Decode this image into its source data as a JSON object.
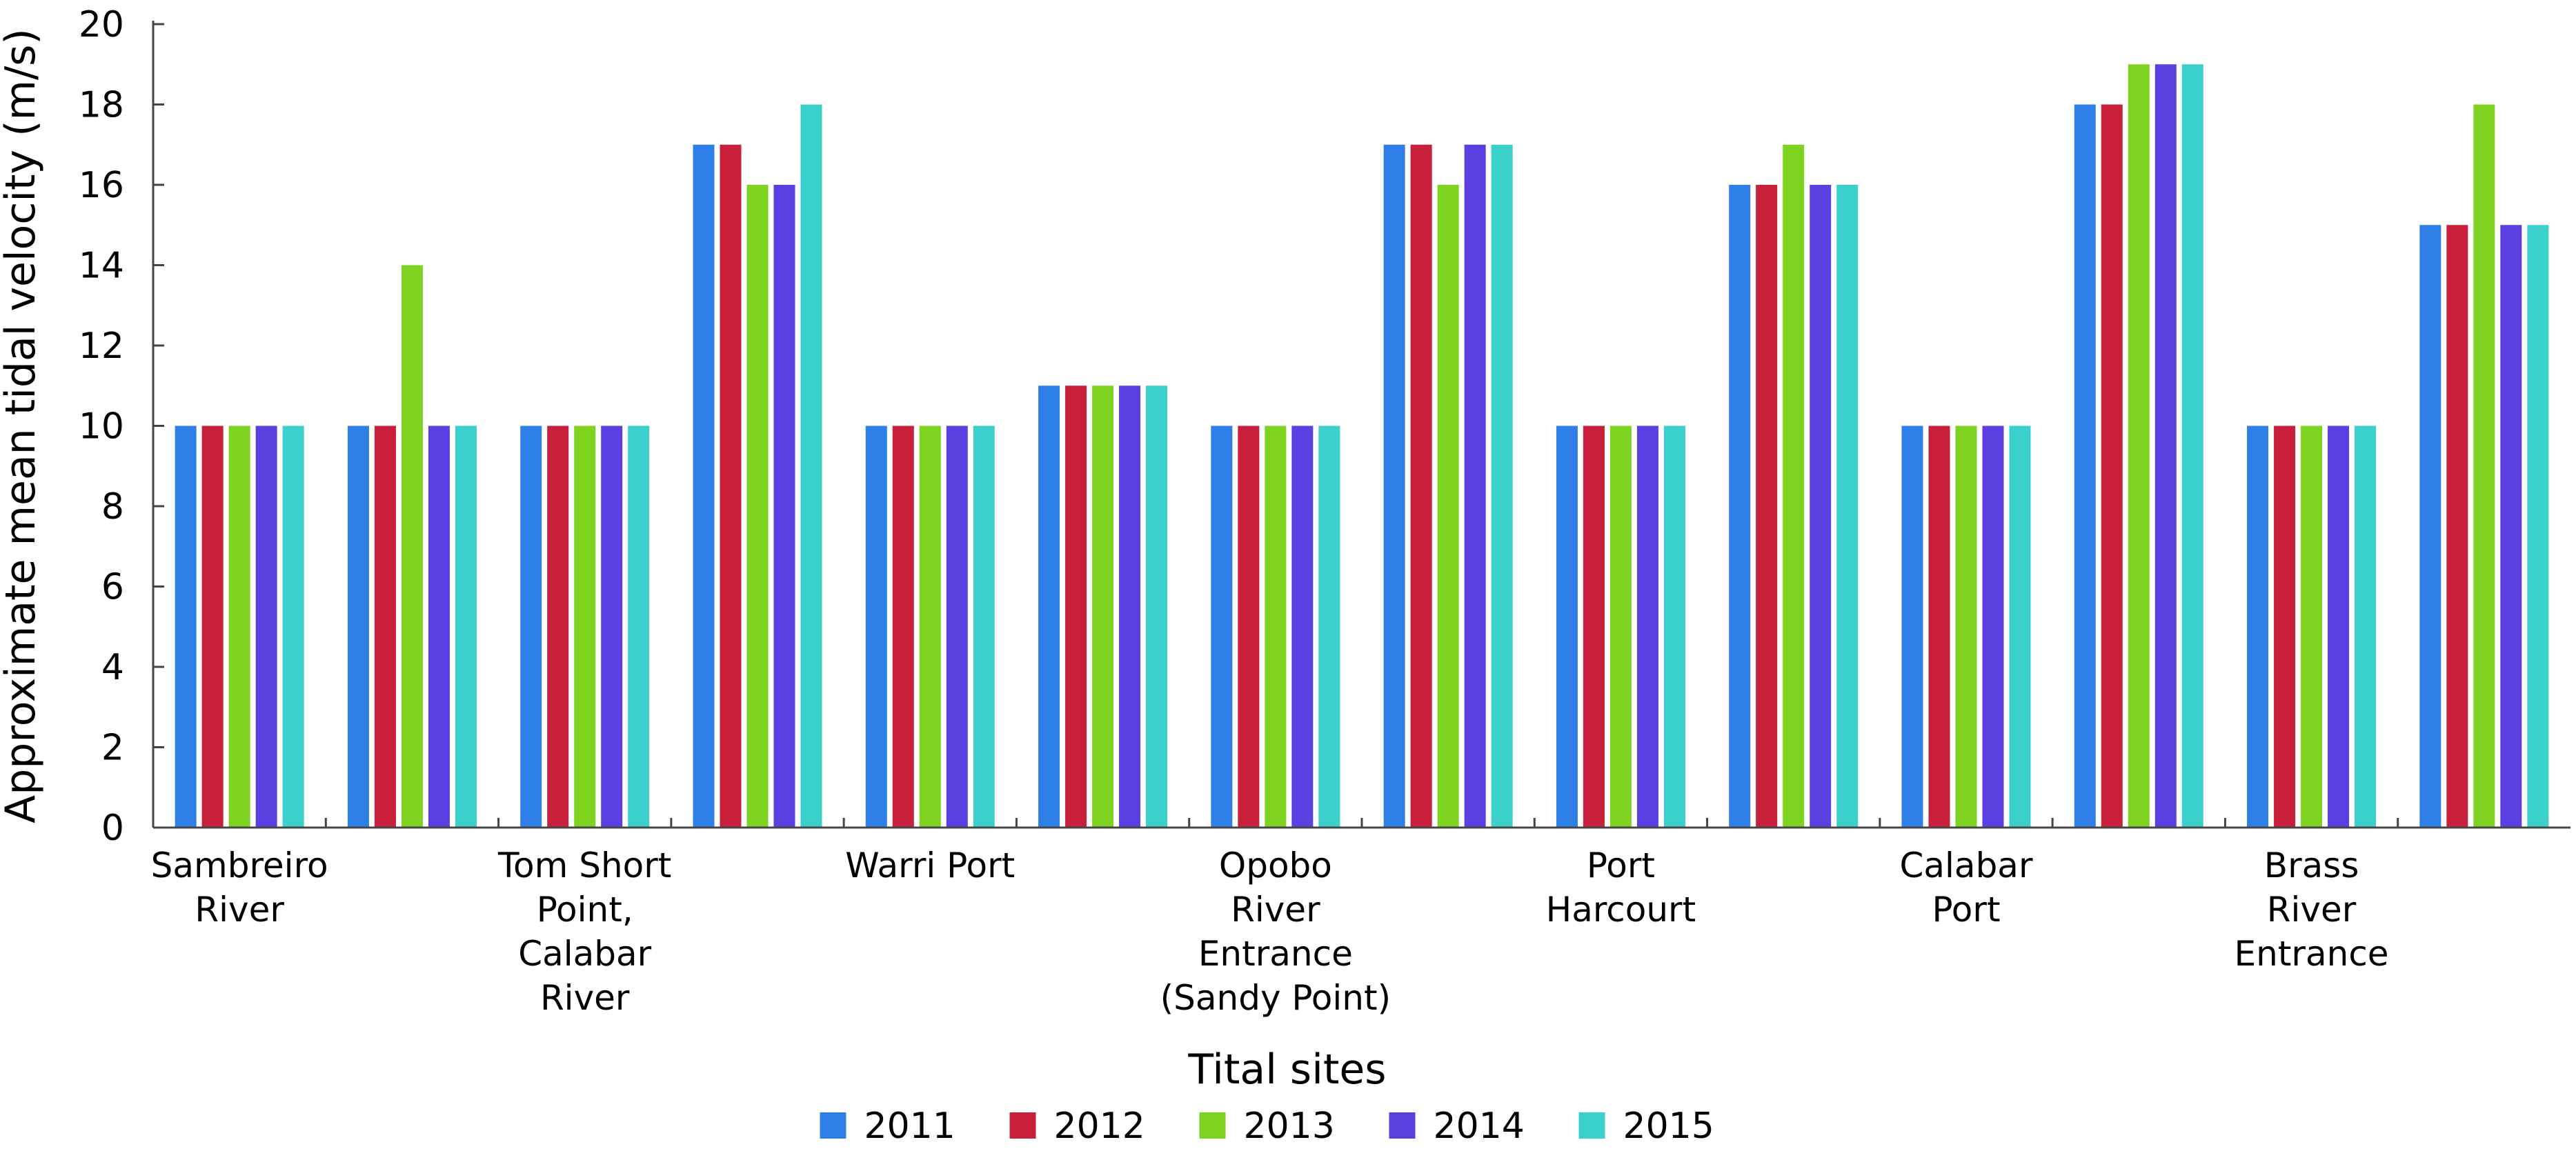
{
  "chart_data": {
    "type": "bar",
    "ylabel": "Approximate mean tidal velocity (m/s)",
    "xlabel": "Tital sites",
    "ylim": [
      0,
      20
    ],
    "yticks": [
      0,
      2,
      4,
      6,
      8,
      10,
      12,
      14,
      16,
      18,
      20
    ],
    "grid": false,
    "legend_position": "bottom",
    "categories": [
      "Sambreiro River",
      "",
      "Tom Short Point, Calabar River",
      "",
      "Warri Port",
      "",
      "Opobo River Entrance (Sandy Point)",
      "",
      "Port Harcourt",
      "",
      "Calabar Port",
      "",
      "Brass River Entrance",
      ""
    ],
    "category_label_lines": [
      [
        "Sambreiro",
        "River"
      ],
      [],
      [
        "Tom Short",
        "Point,",
        "Calabar",
        "River"
      ],
      [],
      [
        "Warri Port"
      ],
      [],
      [
        "Opobo",
        "River",
        "Entrance",
        "(Sandy Point)"
      ],
      [],
      [
        "Port",
        "Harcourt"
      ],
      [],
      [
        "Calabar",
        "Port"
      ],
      [],
      [
        "Brass",
        "River",
        "Entrance"
      ],
      []
    ],
    "series": [
      {
        "name": "2011",
        "color": "#2f7fe8",
        "values": [
          10,
          10,
          10,
          17,
          10,
          11,
          10,
          17,
          10,
          16,
          10,
          18,
          10,
          15
        ]
      },
      {
        "name": "2012",
        "color": "#c8203a",
        "values": [
          10,
          10,
          10,
          17,
          10,
          11,
          10,
          17,
          10,
          16,
          10,
          18,
          10,
          15
        ]
      },
      {
        "name": "2013",
        "color": "#7ed321",
        "values": [
          10,
          14,
          10,
          16,
          10,
          11,
          10,
          16,
          10,
          17,
          10,
          19,
          10,
          18
        ]
      },
      {
        "name": "2014",
        "color": "#5b3fe0",
        "values": [
          10,
          10,
          10,
          16,
          10,
          11,
          10,
          17,
          10,
          16,
          10,
          19,
          10,
          15
        ]
      },
      {
        "name": "2015",
        "color": "#3cd0cc",
        "values": [
          10,
          10,
          10,
          18,
          10,
          11,
          10,
          17,
          10,
          16,
          10,
          19,
          10,
          15
        ]
      }
    ]
  }
}
